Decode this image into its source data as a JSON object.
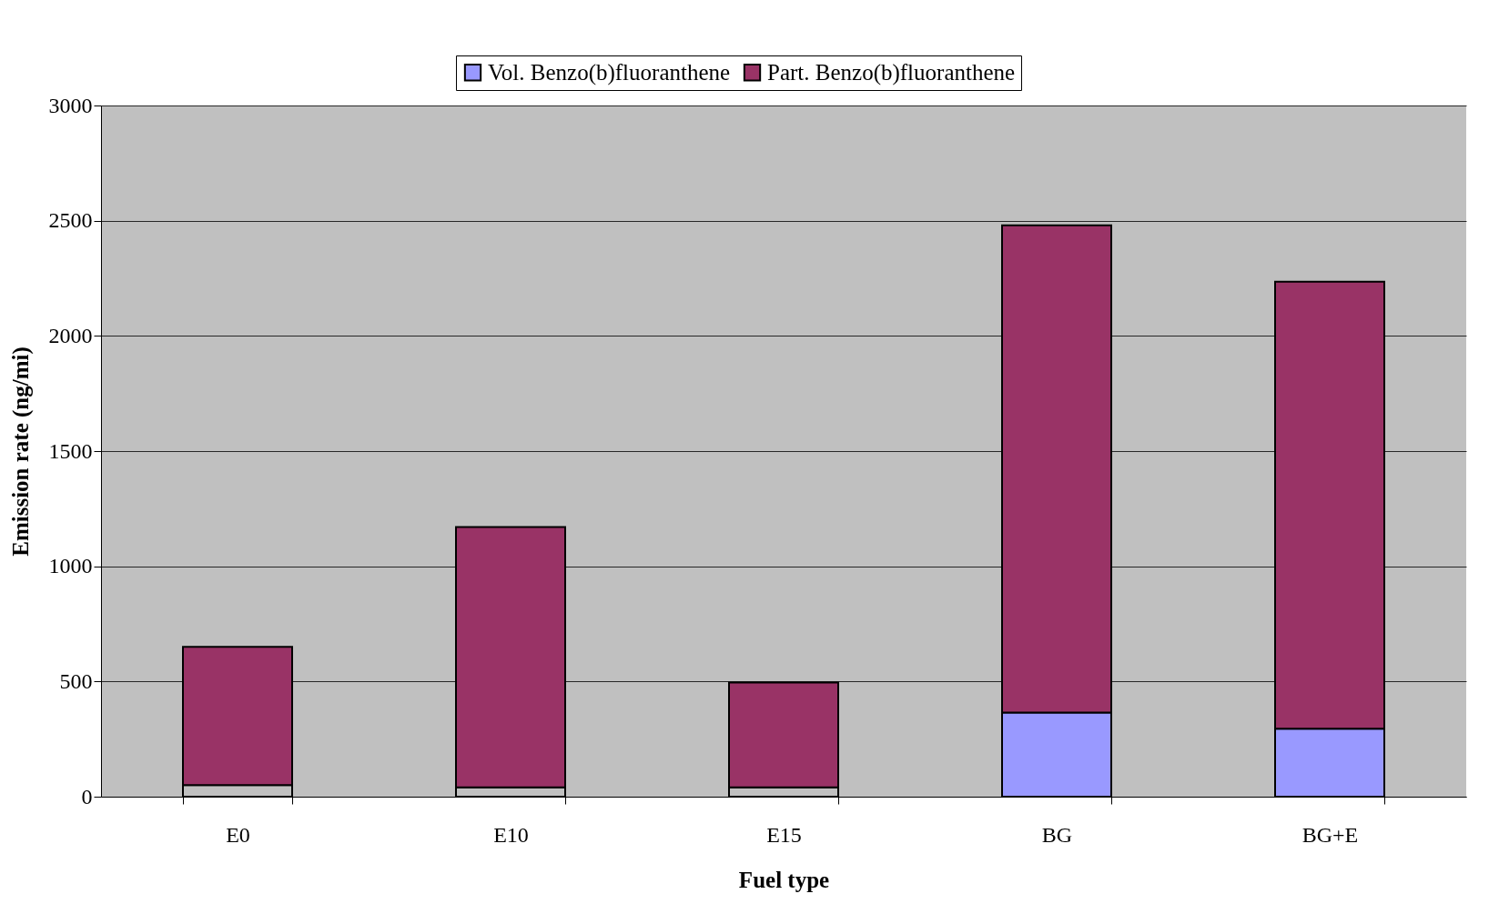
{
  "chart_data": {
    "type": "bar",
    "stacked": true,
    "xlabel": "Fuel type",
    "ylabel": "Emission rate (ng/mi)",
    "categories": [
      "E0",
      "E10",
      "E15",
      "BG",
      "BG+E"
    ],
    "series": [
      {
        "name": "Vol. Benzo(b)fluoranthene",
        "color": "#9999ff",
        "colors": [
          "#c0c0c0",
          "#c0c0c0",
          "#c0c0c0",
          "#9999ff",
          "#9999ff"
        ],
        "values": [
          50,
          40,
          40,
          365,
          295
        ]
      },
      {
        "name": "Part. Benzo(b)fluoranthene",
        "color": "#993366",
        "values": [
          600,
          1130,
          455,
          2115,
          1940
        ]
      }
    ],
    "ylim": [
      0,
      3000
    ],
    "yticks": [
      0,
      500,
      1000,
      1500,
      2000,
      2500,
      3000
    ],
    "grid": "y",
    "legend": "top"
  }
}
